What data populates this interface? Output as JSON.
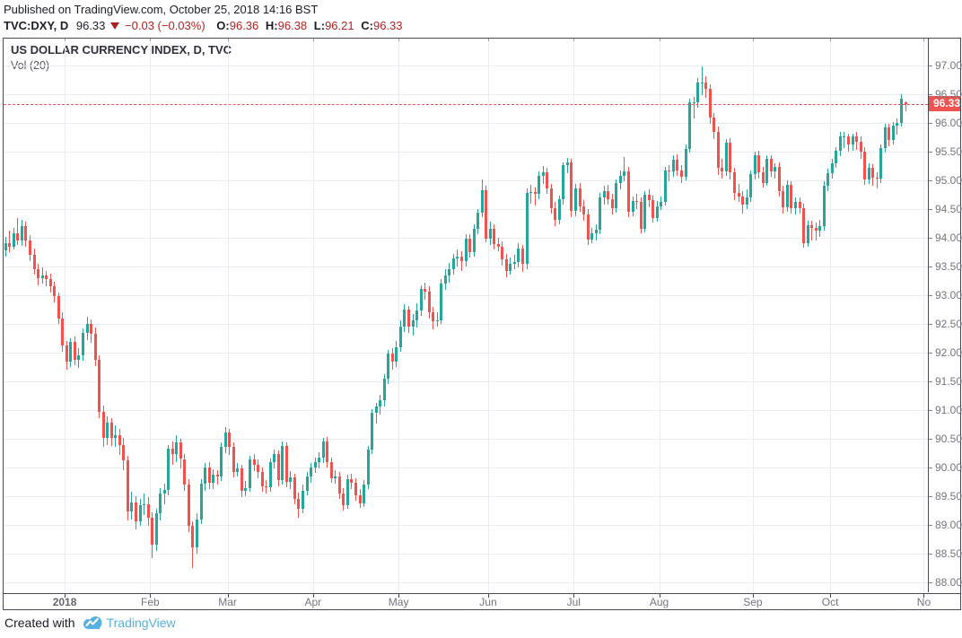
{
  "header": {
    "published_line": "Published on TradingView.com, October 25, 2018 14:16 BST",
    "symbol": "TVC:DXY, D",
    "price": "96.33",
    "direction_icon": "down-triangle",
    "change": "−0.03 (−0.03%)",
    "o_label": "O:",
    "o": "96.36",
    "h_label": "H:",
    "h": "96.38",
    "l_label": "L:",
    "l": "96.21",
    "c_label": "C:",
    "c": "96.33"
  },
  "chart": {
    "legend_title": "US DOLLAR CURRENCY INDEX, D, TVC",
    "legend_indicator": "Vol (20)",
    "price_label": "96.33",
    "colors": {
      "up": "#26a69a",
      "down": "#ef5350",
      "price_line": "#ef5350",
      "tag_bg": "#ef5350",
      "tag_text": "#ffffff",
      "grid": "#e9ecf2",
      "frame": "#474a54",
      "axis_text": "#73767e"
    }
  },
  "footer": {
    "created_with": "Created with",
    "brand": "TradingView",
    "logo_icon": "tradingview-cloud-logo",
    "brand_color": "#55b1e2"
  },
  "chart_data": {
    "type": "candlestick",
    "title": "US DOLLAR CURRENCY INDEX, D, TVC",
    "symbol": "TVC:DXY",
    "interval": "D",
    "last_price": 96.33,
    "price_line_value": 96.33,
    "ylim": [
      87.83,
      97.47
    ],
    "y_ticks": {
      "start": 88.0,
      "end": 97.0,
      "step": 0.5
    },
    "total_slots": 227,
    "x_labels": [
      {
        "label": "2018",
        "start": 15,
        "bold": true
      },
      {
        "label": "Feb",
        "start": 36
      },
      {
        "label": "Mar",
        "start": 55
      },
      {
        "label": "Apr",
        "start": 76
      },
      {
        "label": "May",
        "start": 97
      },
      {
        "label": "Jun",
        "start": 119
      },
      {
        "label": "Jul",
        "start": 140
      },
      {
        "label": "Aug",
        "start": 161
      },
      {
        "label": "Sep",
        "start": 184
      },
      {
        "label": "Oct",
        "start": 203
      },
      {
        "label": "No",
        "start": 226
      }
    ],
    "candles": [
      [
        93.78,
        94.02,
        93.68,
        93.9
      ],
      [
        93.9,
        94.12,
        93.75,
        93.85
      ],
      [
        93.85,
        94.18,
        93.8,
        94.08
      ],
      [
        94.08,
        94.35,
        93.88,
        93.95
      ],
      [
        93.95,
        94.32,
        93.86,
        94.2
      ],
      [
        94.2,
        94.28,
        93.84,
        93.95
      ],
      [
        93.95,
        94.05,
        93.6,
        93.7
      ],
      [
        93.7,
        93.82,
        93.36,
        93.45
      ],
      [
        93.45,
        93.55,
        93.18,
        93.3
      ],
      [
        93.3,
        93.48,
        93.2,
        93.35
      ],
      [
        93.35,
        93.42,
        93.16,
        93.28
      ],
      [
        93.28,
        93.38,
        93.05,
        93.15
      ],
      [
        93.15,
        93.24,
        92.88,
        92.98
      ],
      [
        92.98,
        93.05,
        92.5,
        92.6
      ],
      [
        92.6,
        92.7,
        92.02,
        92.12
      ],
      [
        92.12,
        92.2,
        91.7,
        91.85
      ],
      [
        91.85,
        92.25,
        91.75,
        92.19
      ],
      [
        92.19,
        92.28,
        91.78,
        91.88
      ],
      [
        91.88,
        92.08,
        91.74,
        91.95
      ],
      [
        91.95,
        92.42,
        91.86,
        92.35
      ],
      [
        92.35,
        92.62,
        92.22,
        92.5
      ],
      [
        92.5,
        92.58,
        92.18,
        92.33
      ],
      [
        92.33,
        92.44,
        91.76,
        91.87
      ],
      [
        91.87,
        91.96,
        90.86,
        90.97
      ],
      [
        90.97,
        91.08,
        90.36,
        90.51
      ],
      [
        90.51,
        90.9,
        90.4,
        90.78
      ],
      [
        90.78,
        90.86,
        90.38,
        90.51
      ],
      [
        90.51,
        90.74,
        90.36,
        90.57
      ],
      [
        90.57,
        90.68,
        90.22,
        90.4
      ],
      [
        90.4,
        90.52,
        89.96,
        90.13
      ],
      [
        90.13,
        90.2,
        89.08,
        89.23
      ],
      [
        89.23,
        89.58,
        89.1,
        89.4
      ],
      [
        89.4,
        89.5,
        88.92,
        89.07
      ],
      [
        89.07,
        89.46,
        88.98,
        89.34
      ],
      [
        89.34,
        89.55,
        89.18,
        89.36
      ],
      [
        89.36,
        89.48,
        88.99,
        89.13
      ],
      [
        89.13,
        89.22,
        88.43,
        88.66
      ],
      [
        88.66,
        89.28,
        88.55,
        89.2
      ],
      [
        89.2,
        89.65,
        89.08,
        89.55
      ],
      [
        89.55,
        89.72,
        89.36,
        89.61
      ],
      [
        89.61,
        90.4,
        89.52,
        90.33
      ],
      [
        90.33,
        90.45,
        90.05,
        90.23
      ],
      [
        90.23,
        90.57,
        90.1,
        90.44
      ],
      [
        90.44,
        90.5,
        89.98,
        90.15
      ],
      [
        90.15,
        90.24,
        89.6,
        89.71
      ],
      [
        89.71,
        89.8,
        88.87,
        88.98
      ],
      [
        88.98,
        89.06,
        88.25,
        88.61
      ],
      [
        88.61,
        89.2,
        88.5,
        89.1
      ],
      [
        89.1,
        89.8,
        89.02,
        89.72
      ],
      [
        89.72,
        90.08,
        89.6,
        90.0
      ],
      [
        90.0,
        90.1,
        89.62,
        89.74
      ],
      [
        89.74,
        89.97,
        89.63,
        89.88
      ],
      [
        89.88,
        89.96,
        89.7,
        89.85
      ],
      [
        89.85,
        90.44,
        89.76,
        90.36
      ],
      [
        90.36,
        90.7,
        90.25,
        90.61
      ],
      [
        90.61,
        90.68,
        90.22,
        90.36
      ],
      [
        90.36,
        90.44,
        89.83,
        89.93
      ],
      [
        89.93,
        90.08,
        89.85,
        89.98
      ],
      [
        89.98,
        90.05,
        89.48,
        89.59
      ],
      [
        89.59,
        89.76,
        89.5,
        89.65
      ],
      [
        89.65,
        90.2,
        89.58,
        90.14
      ],
      [
        90.14,
        90.24,
        89.94,
        90.05
      ],
      [
        90.05,
        90.15,
        89.82,
        89.92
      ],
      [
        89.92,
        90.0,
        89.58,
        89.68
      ],
      [
        89.68,
        89.78,
        89.55,
        89.66
      ],
      [
        89.66,
        90.16,
        89.58,
        90.1
      ],
      [
        90.1,
        90.32,
        89.98,
        90.23
      ],
      [
        90.23,
        90.3,
        89.68,
        89.79
      ],
      [
        89.79,
        90.45,
        89.7,
        90.38
      ],
      [
        90.38,
        90.44,
        89.66,
        89.75
      ],
      [
        89.75,
        89.94,
        89.62,
        89.83
      ],
      [
        89.83,
        89.9,
        89.36,
        89.45
      ],
      [
        89.45,
        89.56,
        89.12,
        89.28
      ],
      [
        89.28,
        89.7,
        89.2,
        89.6
      ],
      [
        89.6,
        89.92,
        89.52,
        89.85
      ],
      [
        89.85,
        90.08,
        89.74,
        90.0
      ],
      [
        90.0,
        90.17,
        89.9,
        90.1
      ],
      [
        90.1,
        90.26,
        89.98,
        90.18
      ],
      [
        90.18,
        90.52,
        90.08,
        90.45
      ],
      [
        90.45,
        90.53,
        90.0,
        90.1
      ],
      [
        90.1,
        90.18,
        89.73,
        89.82
      ],
      [
        89.82,
        89.95,
        89.72,
        89.85
      ],
      [
        89.85,
        89.92,
        89.46,
        89.55
      ],
      [
        89.55,
        89.64,
        89.25,
        89.35
      ],
      [
        89.35,
        89.88,
        89.28,
        89.8
      ],
      [
        89.8,
        89.9,
        89.62,
        89.74
      ],
      [
        89.74,
        89.82,
        89.42,
        89.52
      ],
      [
        89.52,
        89.62,
        89.3,
        89.38
      ],
      [
        89.38,
        89.78,
        89.32,
        89.7
      ],
      [
        89.7,
        90.38,
        89.62,
        90.31
      ],
      [
        90.31,
        91.02,
        90.24,
        90.95
      ],
      [
        90.95,
        91.13,
        90.76,
        91.07
      ],
      [
        91.07,
        91.26,
        90.92,
        91.17
      ],
      [
        91.17,
        91.62,
        91.06,
        91.55
      ],
      [
        91.55,
        92.05,
        91.46,
        91.99
      ],
      [
        91.99,
        92.08,
        91.7,
        91.84
      ],
      [
        91.84,
        92.2,
        91.75,
        92.1
      ],
      [
        92.1,
        92.56,
        92.02,
        92.45
      ],
      [
        92.45,
        92.84,
        92.36,
        92.75
      ],
      [
        92.75,
        92.82,
        92.34,
        92.45
      ],
      [
        92.45,
        92.68,
        92.3,
        92.57
      ],
      [
        92.57,
        92.86,
        92.44,
        92.73
      ],
      [
        92.73,
        93.18,
        92.64,
        93.11
      ],
      [
        93.11,
        93.22,
        92.92,
        93.07
      ],
      [
        93.07,
        93.15,
        92.6,
        92.71
      ],
      [
        92.71,
        92.8,
        92.4,
        92.55
      ],
      [
        92.55,
        92.7,
        92.46,
        92.57
      ],
      [
        92.57,
        93.28,
        92.5,
        93.21
      ],
      [
        93.21,
        93.45,
        93.1,
        93.35
      ],
      [
        93.35,
        93.56,
        93.22,
        93.46
      ],
      [
        93.46,
        93.72,
        93.36,
        93.64
      ],
      [
        93.64,
        93.8,
        93.5,
        93.68
      ],
      [
        93.68,
        93.76,
        93.42,
        93.59
      ],
      [
        93.59,
        94.06,
        93.5,
        93.98
      ],
      [
        93.98,
        94.06,
        93.66,
        93.75
      ],
      [
        93.75,
        94.24,
        93.68,
        94.15
      ],
      [
        94.15,
        94.5,
        94.06,
        94.44
      ],
      [
        94.44,
        95.02,
        94.36,
        94.83
      ],
      [
        94.83,
        94.9,
        93.92,
        93.98
      ],
      [
        93.98,
        94.28,
        93.88,
        94.16
      ],
      [
        94.16,
        94.24,
        93.8,
        93.89
      ],
      [
        93.89,
        94.0,
        93.76,
        93.85
      ],
      [
        93.85,
        93.94,
        93.52,
        93.63
      ],
      [
        93.63,
        93.72,
        93.32,
        93.43
      ],
      [
        93.43,
        93.66,
        93.36,
        93.55
      ],
      [
        93.55,
        93.7,
        93.46,
        93.58
      ],
      [
        93.58,
        93.9,
        93.48,
        93.81
      ],
      [
        93.81,
        93.88,
        93.4,
        93.55
      ],
      [
        93.55,
        94.86,
        93.46,
        94.79
      ],
      [
        94.79,
        94.92,
        94.6,
        94.8
      ],
      [
        94.8,
        94.88,
        94.56,
        94.77
      ],
      [
        94.77,
        95.15,
        94.68,
        95.08
      ],
      [
        95.08,
        95.25,
        94.94,
        95.14
      ],
      [
        95.14,
        95.22,
        94.76,
        94.86
      ],
      [
        94.86,
        94.94,
        94.42,
        94.52
      ],
      [
        94.52,
        94.62,
        94.2,
        94.31
      ],
      [
        94.31,
        94.74,
        94.24,
        94.67
      ],
      [
        94.67,
        95.32,
        94.58,
        95.26
      ],
      [
        95.26,
        95.39,
        95.12,
        95.31
      ],
      [
        95.31,
        95.38,
        94.36,
        94.47
      ],
      [
        94.47,
        94.94,
        94.38,
        94.86
      ],
      [
        94.86,
        94.95,
        94.46,
        94.55
      ],
      [
        94.55,
        94.66,
        94.3,
        94.4
      ],
      [
        94.4,
        94.5,
        93.88,
        93.97
      ],
      [
        93.97,
        94.18,
        93.9,
        94.08
      ],
      [
        94.08,
        94.24,
        93.96,
        94.14
      ],
      [
        94.14,
        94.78,
        94.06,
        94.7
      ],
      [
        94.7,
        94.9,
        94.58,
        94.82
      ],
      [
        94.82,
        94.92,
        94.58,
        94.68
      ],
      [
        94.68,
        94.76,
        94.4,
        94.51
      ],
      [
        94.51,
        95.02,
        94.44,
        94.95
      ],
      [
        94.95,
        95.17,
        94.84,
        95.08
      ],
      [
        95.08,
        95.4,
        94.98,
        95.16
      ],
      [
        95.16,
        95.24,
        94.36,
        94.46
      ],
      [
        94.46,
        94.72,
        94.38,
        94.64
      ],
      [
        94.64,
        94.76,
        94.5,
        94.63
      ],
      [
        94.63,
        94.7,
        94.08,
        94.16
      ],
      [
        94.16,
        94.82,
        94.1,
        94.75
      ],
      [
        94.75,
        94.84,
        94.54,
        94.66
      ],
      [
        94.66,
        94.74,
        94.26,
        94.35
      ],
      [
        94.35,
        94.64,
        94.28,
        94.55
      ],
      [
        94.55,
        94.72,
        94.48,
        94.62
      ],
      [
        94.62,
        95.24,
        94.56,
        95.17
      ],
      [
        95.17,
        95.26,
        94.98,
        95.16
      ],
      [
        95.16,
        95.44,
        95.06,
        95.36
      ],
      [
        95.36,
        95.46,
        95.08,
        95.18
      ],
      [
        95.18,
        95.26,
        94.96,
        95.07
      ],
      [
        95.07,
        95.62,
        95.0,
        95.55
      ],
      [
        95.55,
        96.42,
        95.48,
        96.36
      ],
      [
        96.36,
        96.46,
        96.08,
        96.36
      ],
      [
        96.36,
        96.78,
        96.26,
        96.71
      ],
      [
        96.71,
        96.99,
        96.48,
        96.71
      ],
      [
        96.71,
        96.82,
        96.44,
        96.6
      ],
      [
        96.6,
        96.68,
        95.98,
        96.1
      ],
      [
        96.1,
        96.18,
        95.72,
        95.84
      ],
      [
        95.84,
        95.94,
        95.1,
        95.22
      ],
      [
        95.22,
        95.38,
        95.03,
        95.16
      ],
      [
        95.16,
        95.72,
        95.08,
        95.66
      ],
      [
        95.66,
        95.74,
        95.02,
        95.14
      ],
      [
        95.14,
        95.22,
        94.66,
        94.78
      ],
      [
        94.78,
        94.94,
        94.62,
        94.72
      ],
      [
        94.72,
        94.82,
        94.43,
        94.58
      ],
      [
        94.58,
        94.84,
        94.5,
        94.71
      ],
      [
        94.71,
        95.18,
        94.62,
        95.11
      ],
      [
        95.11,
        95.5,
        95.02,
        95.44
      ],
      [
        95.44,
        95.52,
        95.04,
        95.14
      ],
      [
        95.14,
        95.24,
        94.88,
        94.96
      ],
      [
        94.96,
        95.44,
        94.9,
        95.37
      ],
      [
        95.37,
        95.44,
        95.06,
        95.15
      ],
      [
        95.15,
        95.3,
        95.04,
        95.23
      ],
      [
        95.23,
        95.32,
        94.72,
        94.81
      ],
      [
        94.81,
        94.9,
        94.43,
        94.54
      ],
      [
        94.54,
        95.0,
        94.46,
        94.93
      ],
      [
        94.93,
        94.99,
        94.42,
        94.51
      ],
      [
        94.51,
        94.7,
        94.4,
        94.62
      ],
      [
        94.62,
        94.7,
        94.42,
        94.52
      ],
      [
        94.52,
        94.6,
        93.83,
        93.91
      ],
      [
        93.91,
        94.3,
        93.84,
        94.22
      ],
      [
        94.22,
        94.3,
        93.95,
        94.18
      ],
      [
        94.18,
        94.26,
        93.96,
        94.13
      ],
      [
        94.13,
        94.32,
        94.02,
        94.2
      ],
      [
        94.2,
        94.98,
        94.12,
        94.91
      ],
      [
        94.91,
        95.2,
        94.82,
        95.13
      ],
      [
        95.13,
        95.37,
        95.04,
        95.3
      ],
      [
        95.3,
        95.58,
        95.22,
        95.51
      ],
      [
        95.51,
        95.84,
        95.42,
        95.76
      ],
      [
        95.76,
        95.85,
        95.56,
        95.76
      ],
      [
        95.76,
        95.82,
        95.5,
        95.62
      ],
      [
        95.62,
        95.82,
        95.52,
        95.76
      ],
      [
        95.76,
        95.84,
        95.54,
        95.68
      ],
      [
        95.68,
        95.76,
        95.38,
        95.5
      ],
      [
        95.5,
        95.58,
        94.92,
        95.02
      ],
      [
        95.02,
        95.3,
        94.94,
        95.22
      ],
      [
        95.22,
        95.28,
        94.9,
        95.05
      ],
      [
        95.05,
        95.14,
        94.86,
        95.03
      ],
      [
        95.03,
        95.63,
        94.96,
        95.57
      ],
      [
        95.57,
        95.98,
        95.48,
        95.92
      ],
      [
        95.92,
        95.98,
        95.6,
        95.71
      ],
      [
        95.71,
        96.02,
        95.62,
        95.96
      ],
      [
        95.96,
        96.08,
        95.8,
        96.0
      ],
      [
        96.0,
        96.5,
        95.94,
        96.42
      ],
      [
        96.36,
        96.38,
        96.21,
        96.33
      ]
    ]
  }
}
